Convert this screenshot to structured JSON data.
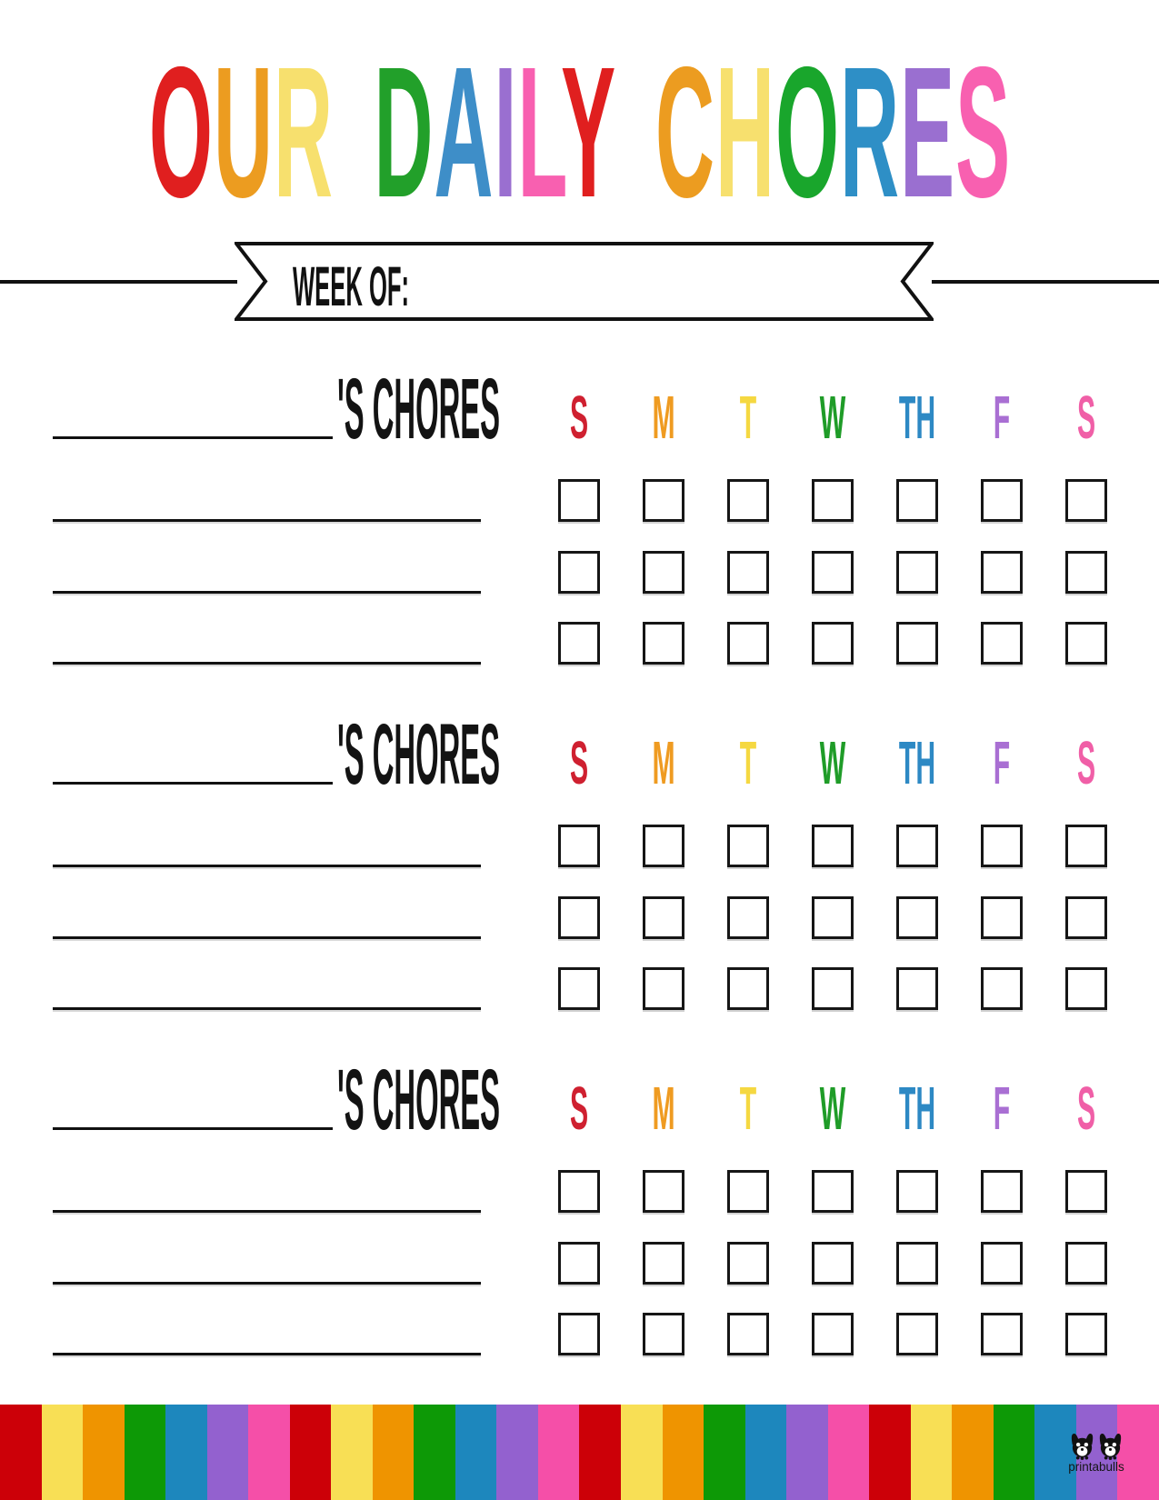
{
  "title": {
    "text": "OUR DAILY CHORES",
    "letters": [
      {
        "ch": "O",
        "color": "#e01f1f"
      },
      {
        "ch": "U",
        "color": "#ec9c20"
      },
      {
        "ch": "R",
        "color": "#f7e06e"
      },
      {
        "ch": " ",
        "color": ""
      },
      {
        "ch": "D",
        "color": "#22a02a"
      },
      {
        "ch": "A",
        "color": "#3e8ec8"
      },
      {
        "ch": "I",
        "color": "#9a6fd0"
      },
      {
        "ch": "L",
        "color": "#f860b0"
      },
      {
        "ch": "Y",
        "color": "#e01f1f"
      },
      {
        "ch": " ",
        "color": ""
      },
      {
        "ch": "C",
        "color": "#ec9c20"
      },
      {
        "ch": "H",
        "color": "#f7e06e"
      },
      {
        "ch": "O",
        "color": "#19a62c"
      },
      {
        "ch": "R",
        "color": "#2e8fc6"
      },
      {
        "ch": "E",
        "color": "#9a6fd0"
      },
      {
        "ch": "S",
        "color": "#f860b0"
      }
    ]
  },
  "banner": {
    "label": "WEEK OF:",
    "week_value": ""
  },
  "day_headers": [
    {
      "label": "S",
      "color": "#cf2030"
    },
    {
      "label": "M",
      "color": "#ef9b21"
    },
    {
      "label": "T",
      "color": "#f5d841"
    },
    {
      "label": "W",
      "color": "#1f9c28"
    },
    {
      "label": "TH",
      "color": "#2d89c4"
    },
    {
      "label": "F",
      "color": "#a96fd3"
    },
    {
      "label": "S",
      "color": "#f05fa7"
    }
  ],
  "sections": [
    {
      "name_value": "",
      "label_suffix": "'S CHORES",
      "chore_line_count": 3,
      "checkbox_rows": 3,
      "checkbox_cols": 7
    },
    {
      "name_value": "",
      "label_suffix": "'S CHORES",
      "chore_line_count": 3,
      "checkbox_rows": 3,
      "checkbox_cols": 7
    },
    {
      "name_value": "",
      "label_suffix": "'S CHORES",
      "chore_line_count": 3,
      "checkbox_rows": 3,
      "checkbox_cols": 7
    }
  ],
  "footer": {
    "logo_text": "printabulls",
    "stripe_colors": [
      "#cc0008",
      "#f8df55",
      "#ef9400",
      "#0d9906",
      "#1d87bd",
      "#9361cf",
      "#f54fa8"
    ],
    "stripe_repeats": 4
  }
}
